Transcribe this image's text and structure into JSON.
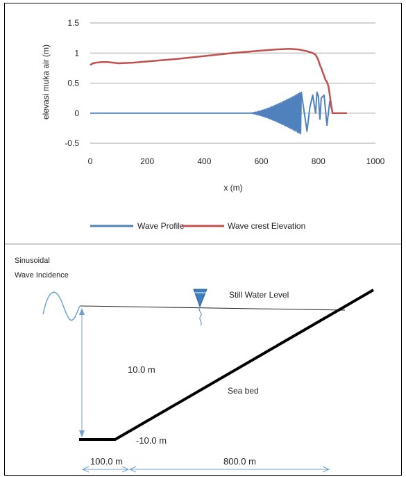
{
  "chart_data": {
    "type": "line",
    "xlabel": "x (m)",
    "ylabel": "elevasi muka air (m)",
    "xlim": [
      0,
      1000
    ],
    "ylim": [
      -0.5,
      1.5
    ],
    "x_ticks": [
      "0",
      "200",
      "400",
      "600",
      "800",
      "1000"
    ],
    "y_ticks": [
      "1.5",
      "1",
      "0.5",
      "0",
      "-0.5"
    ],
    "grid": "horizontal",
    "legend_position": "bottom",
    "series": [
      {
        "name": "Wave crest Elevation",
        "color": "#c0504d",
        "x": [
          0,
          10,
          20,
          40,
          60,
          80,
          100,
          150,
          200,
          300,
          400,
          500,
          600,
          650,
          700,
          730,
          760,
          780,
          790,
          795,
          800,
          805,
          810,
          815,
          820,
          825,
          830,
          835,
          840,
          845,
          850,
          900
        ],
        "y": [
          0.8,
          0.83,
          0.84,
          0.85,
          0.85,
          0.84,
          0.83,
          0.84,
          0.86,
          0.9,
          0.95,
          1.0,
          1.04,
          1.06,
          1.07,
          1.06,
          1.03,
          1.0,
          0.97,
          0.93,
          0.88,
          0.8,
          0.75,
          0.68,
          0.62,
          0.55,
          0.52,
          0.45,
          0.3,
          0.12,
          0.0,
          0.0
        ]
      },
      {
        "name": "Wave Profile",
        "color": "#4f81bd",
        "x": [
          0,
          560,
          600,
          640,
          680,
          700,
          720,
          730,
          735,
          740,
          760,
          770,
          780,
          790,
          795,
          800,
          805,
          810,
          820,
          830,
          840,
          850,
          860
        ],
        "y": [
          0,
          0,
          0.05,
          0.12,
          0.2,
          0.25,
          0.3,
          -0.4,
          0.05,
          0.25,
          -0.3,
          0.1,
          0.3,
          0.0,
          0.35,
          0.28,
          -0.1,
          0.25,
          0.3,
          -0.2,
          0.2,
          0.0,
          0.0
        ],
        "oscillating_band": {
          "x_start": 560,
          "x_end": 740,
          "max_amplitude": 0.35
        }
      }
    ]
  },
  "diagram": {
    "incidence_line1": "Sinusoidal",
    "incidence_line2": "Wave Incidence",
    "still_water_label": "Still Water Level",
    "depth_label": "10.0 m",
    "seabed_label": "Sea bed",
    "bottom_depth_label": "-10.0 m",
    "flat_length_label": "100.0 m",
    "slope_length_label": "800.0 m"
  }
}
